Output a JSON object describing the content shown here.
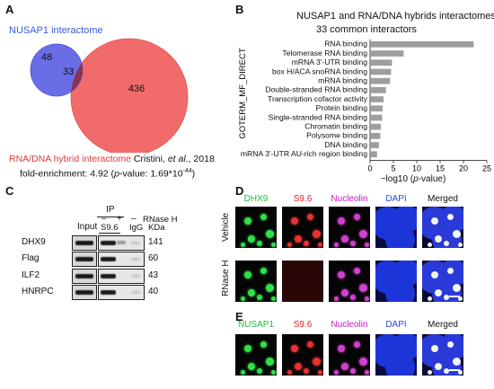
{
  "panels": {
    "a": "A",
    "b": "B",
    "c": "C",
    "d": "D",
    "e": "E"
  },
  "venn": {
    "left_label": "NUSAP1 interactome",
    "left_only": "48",
    "overlap": "33",
    "right_only": "436",
    "caption_colored": "RNA/DNA hybrid interactome",
    "caption_ref_pre": " Cristini, ",
    "caption_ref_ital": "et al",
    "caption_ref_post": "., 2018",
    "fold_pre": "fold-enrichment: 4.92 (",
    "fold_p": "p",
    "fold_post": "-value: 1.69*10",
    "fold_exp": "-44",
    "fold_end": ")",
    "colors": {
      "left": "#6a6ee6",
      "right": "#f26b6b",
      "overlap": "#8a3350",
      "left_label": "#3b5bd6",
      "caption": "#e03a3a"
    }
  },
  "bar_chart": {
    "title": "NUSAP1 and RNA/DNA hybrids interactomes",
    "subtitle": "33 common interactors",
    "ylabel": "GOTERM_MF_DIRECT",
    "xlabel_pre": "−log10 (",
    "xlabel_p": "p",
    "xlabel_post": "-value)",
    "ticks": [
      "0",
      "5",
      "10",
      "15",
      "20",
      "25"
    ],
    "bar_color": "#9e9e9e"
  },
  "chart_data": {
    "type": "bar",
    "orientation": "horizontal",
    "title": "NUSAP1 and RNA/DNA hybrids interactomes",
    "subtitle": "33 common interactors",
    "xlabel": "−log10 (p-value)",
    "ylabel": "GOTERM_MF_DIRECT",
    "xlim": [
      0,
      25
    ],
    "categories": [
      "RNA binding",
      "Telomerase RNA binding",
      "mRNA 3'-UTR binding",
      "box H/ACA snoRNA binding",
      "mRNA binding",
      "Double-stranded RNA binding",
      "Transcription cofactor activity",
      "Protein binding",
      "Single-stranded RNA binding",
      "Chromatin binding",
      "Polysome binding",
      "DNA binding",
      "mRNA 3'-UTR AU-rich region binding"
    ],
    "values": [
      22.2,
      7.2,
      4.7,
      4.5,
      4.3,
      3.4,
      2.9,
      2.7,
      2.6,
      2.3,
      2.2,
      1.9,
      1.5
    ],
    "grid": false
  },
  "western": {
    "ip_label": "IP",
    "rnase_label": "RNase H",
    "minus1": "–",
    "plus1": "+",
    "minus2": "–",
    "input_label": "Input",
    "s96_label": "S9.6",
    "igg_label": "IgG",
    "kda_label": "KDa",
    "rows": [
      {
        "name": "DHX9",
        "kda": "141"
      },
      {
        "name": "Flag",
        "kda": "60"
      },
      {
        "name": "ILF2",
        "kda": "43"
      },
      {
        "name": "HNRPC",
        "kda": "40"
      }
    ]
  },
  "micro_d": {
    "headers": [
      {
        "text": "DHX9",
        "color": "#1fbf3a"
      },
      {
        "text": "S9.6",
        "color": "#e02020"
      },
      {
        "text": "Nucleolin",
        "color": "#c21cc2"
      },
      {
        "text": "DAPI",
        "color": "#2a4de0"
      },
      {
        "text": "Merged",
        "color": "#111111"
      }
    ],
    "row_labels": [
      "Vehicle",
      "RNase H"
    ]
  },
  "micro_e": {
    "headers": [
      {
        "text": "NUSAP1",
        "color": "#1fbf3a"
      },
      {
        "text": "S9.6",
        "color": "#e02020"
      },
      {
        "text": "Nucleolin",
        "color": "#c21cc2"
      },
      {
        "text": "DAPI",
        "color": "#2a4de0"
      },
      {
        "text": "Merged",
        "color": "#111111"
      }
    ]
  }
}
